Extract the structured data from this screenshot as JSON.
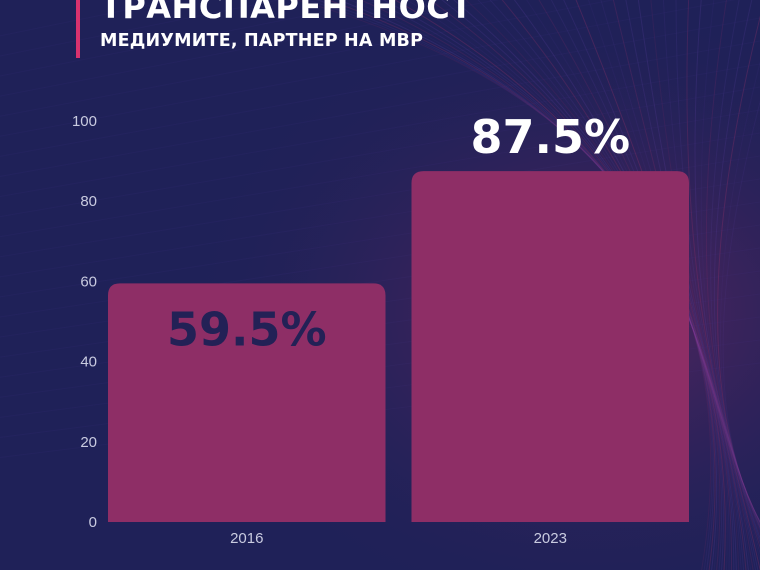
{
  "title": "ТРАНСПАРЕНТНОСТ",
  "subtitle": "МЕДИУМИТЕ, ПАРТНЕР НА МВР",
  "colors": {
    "background": "#1f2158",
    "bar": "#8e2e66",
    "accent": "#d8326e",
    "label_on_bar": "#232156",
    "label_above_bar": "#ffffff",
    "tick_text": "#c9cbe0"
  },
  "chart_data": {
    "type": "bar",
    "categories": [
      "2016",
      "2023"
    ],
    "values": [
      59.5,
      87.5
    ],
    "data_labels": [
      "59.5%",
      "87.5%"
    ],
    "ylim": [
      0,
      100
    ],
    "yticks": [
      "0",
      "20",
      "40",
      "60",
      "80",
      "100"
    ],
    "title": "ТРАНСПАРЕНТНОСТ",
    "subtitle": "МЕДИУМИТЕ, ПАРТНЕР НА МВР",
    "xlabel": "",
    "ylabel": "",
    "grid": false,
    "legend": "none"
  }
}
